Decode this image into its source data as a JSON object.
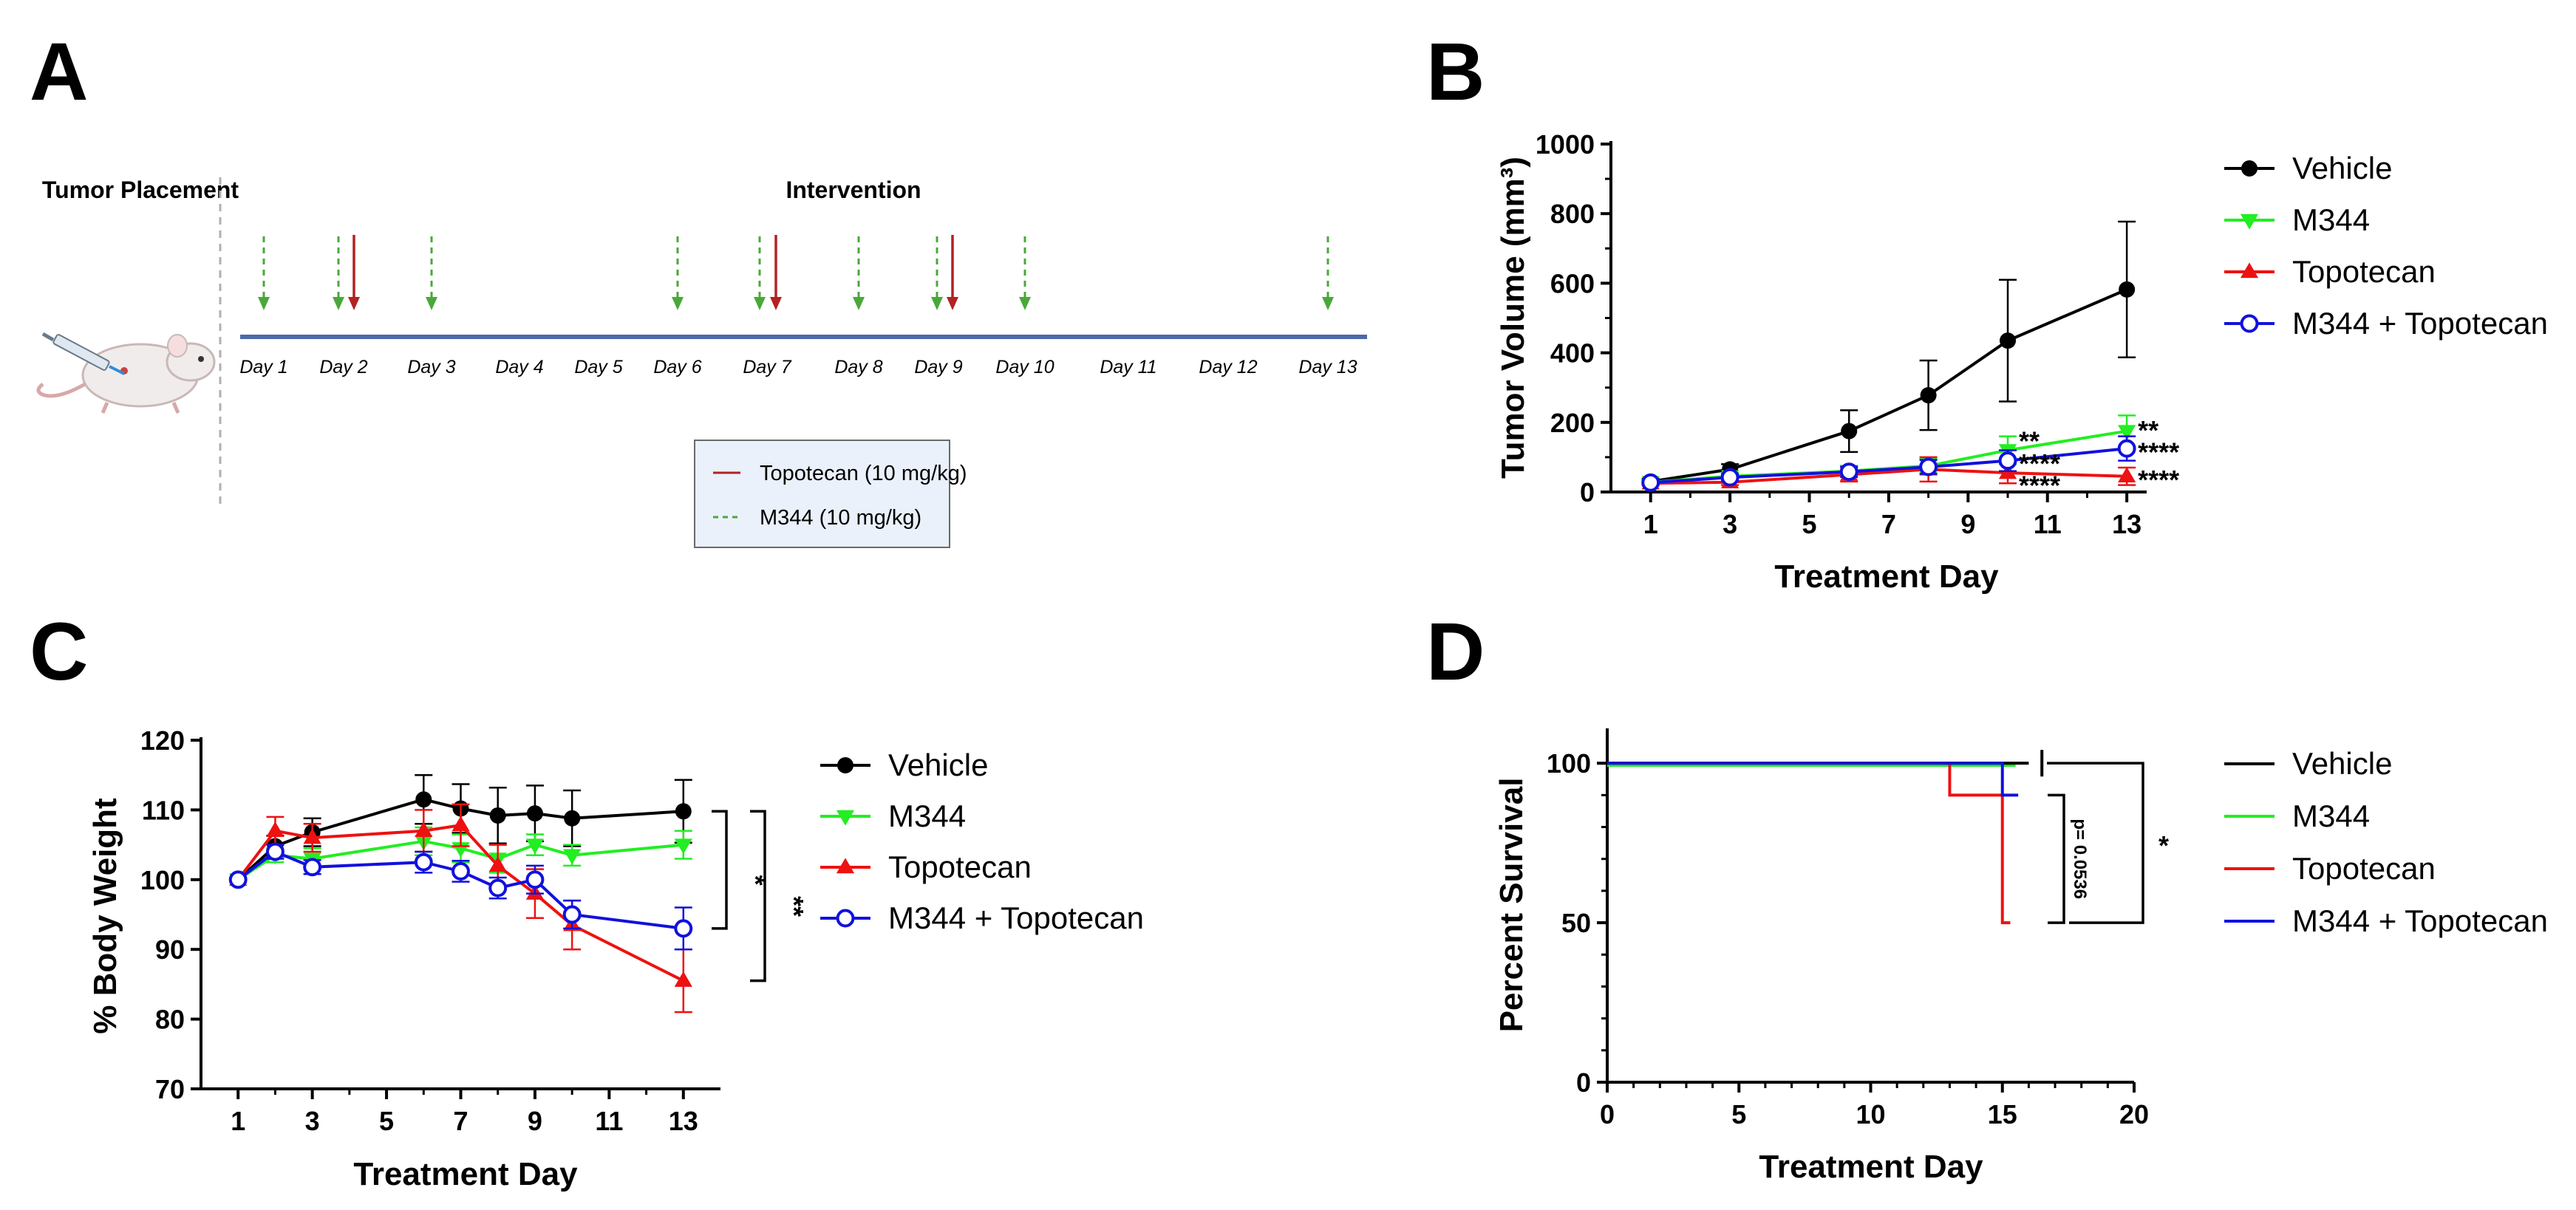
{
  "figure": {
    "panel_letters": [
      "A",
      "B",
      "C",
      "D"
    ],
    "colors": {
      "vehicle": "#000000",
      "m344": "#22ee22",
      "topotecan": "#ee1111",
      "combo": "#1111dd",
      "timeline": "#4a6aa8",
      "topotecan_arrow": "#b22222",
      "m344_arrow": "#4aa83a",
      "key_box": "#eaf1fa"
    }
  },
  "panel_a": {
    "tumor_placement": "Tumor Placement",
    "intervention": "Intervention",
    "days": [
      "Day 1",
      "Day 2",
      "Day 3",
      "Day 4",
      "Day 5",
      "Day 6",
      "Day 7",
      "Day 8",
      "Day 9",
      "Day 10",
      "Day 11",
      "Day 12",
      "Day 13"
    ],
    "m344_dose_days": [
      1,
      2,
      3,
      6,
      7,
      8,
      9,
      10,
      13
    ],
    "topotecan_dose_days": [
      2,
      7,
      9
    ],
    "key": {
      "topotecan": "Topotecan (10 mg/kg)",
      "m344": "M344 (10 mg/kg)"
    }
  },
  "chart_data": [
    {
      "panel": "B",
      "type": "line",
      "title": "",
      "xlabel": "Treatment  Day",
      "ylabel": "Tumor Volume  (mm³)",
      "xlim": [
        0,
        13.5
      ],
      "ylim": [
        0,
        1000
      ],
      "xticks": [
        1,
        3,
        5,
        7,
        9,
        11,
        13
      ],
      "yticks": [
        0,
        200,
        400,
        600,
        800,
        1000
      ],
      "legend_position": "right",
      "series": [
        {
          "name": "Vehicle",
          "marker": "circle",
          "x": [
            1,
            3,
            6,
            8,
            10,
            13
          ],
          "values": [
            30,
            65,
            175,
            278,
            435,
            582
          ],
          "err": [
            8,
            15,
            60,
            100,
            175,
            195
          ]
        },
        {
          "name": "M344",
          "marker": "triangle-down",
          "x": [
            1,
            3,
            6,
            8,
            10,
            13
          ],
          "values": [
            28,
            45,
            60,
            75,
            120,
            175
          ],
          "err": [
            6,
            10,
            15,
            20,
            40,
            45
          ]
        },
        {
          "name": "Topotecan",
          "marker": "triangle-up",
          "x": [
            1,
            3,
            6,
            8,
            10,
            13
          ],
          "values": [
            25,
            28,
            50,
            65,
            55,
            45
          ],
          "err": [
            5,
            8,
            20,
            35,
            30,
            25
          ]
        },
        {
          "name": "M344 + Topotecan",
          "marker": "open-circle",
          "x": [
            1,
            3,
            6,
            8,
            10,
            13
          ],
          "values": [
            27,
            42,
            58,
            72,
            90,
            125
          ],
          "err": [
            6,
            10,
            15,
            20,
            30,
            35
          ]
        }
      ],
      "annotations": [
        {
          "text": "**",
          "x": 10,
          "y": 150
        },
        {
          "text": "****",
          "x": 10,
          "y": 85
        },
        {
          "text": "****",
          "x": 10,
          "y": 22
        },
        {
          "text": "**",
          "x": 13,
          "y": 180
        },
        {
          "text": "****",
          "x": 13,
          "y": 118
        },
        {
          "text": "****",
          "x": 13,
          "y": 38
        }
      ]
    },
    {
      "panel": "C",
      "type": "line",
      "title": "",
      "xlabel": "Treatment Day",
      "ylabel": "% Body Weight",
      "xlim": [
        0,
        14
      ],
      "ylim": [
        70,
        120
      ],
      "xticks": [
        1,
        3,
        5,
        7,
        9,
        11,
        13
      ],
      "yticks": [
        70,
        80,
        90,
        100,
        110,
        120
      ],
      "legend_position": "right",
      "series": [
        {
          "name": "Vehicle",
          "marker": "circle",
          "x": [
            1,
            2,
            3,
            6,
            7,
            8,
            9,
            10,
            13
          ],
          "values": [
            100,
            104.8,
            106.8,
            111.5,
            110.2,
            109.2,
            109.5,
            108.8,
            109.8
          ],
          "err": [
            0,
            1.5,
            2,
            3.5,
            3.5,
            4,
            4,
            4,
            4.5
          ]
        },
        {
          "name": "M344",
          "marker": "triangle-down",
          "x": [
            1,
            2,
            3,
            6,
            7,
            8,
            9,
            10,
            13
          ],
          "values": [
            100,
            103.5,
            103,
            105.5,
            104.5,
            103,
            105,
            103.5,
            105
          ],
          "err": [
            0,
            1,
            1.5,
            2,
            2,
            2,
            1.5,
            1.5,
            2
          ]
        },
        {
          "name": "Topotecan",
          "marker": "triangle-up",
          "x": [
            1,
            2,
            3,
            6,
            7,
            8,
            9,
            10,
            13
          ],
          "values": [
            100,
            107,
            106,
            107,
            107.8,
            102,
            98,
            93.5,
            85.5
          ],
          "err": [
            0,
            2,
            2,
            3,
            3,
            3,
            3.5,
            3.5,
            4.5
          ]
        },
        {
          "name": "M344 + Topotecan",
          "marker": "open-circle",
          "x": [
            1,
            2,
            3,
            6,
            7,
            8,
            9,
            10,
            13
          ],
          "values": [
            100,
            104,
            101.8,
            102.5,
            101.2,
            98.8,
            100,
            95,
            93
          ],
          "err": [
            0,
            1,
            1,
            1.5,
            1.5,
            1.5,
            2,
            2,
            3
          ]
        }
      ],
      "brackets": [
        {
          "text": "*",
          "y_top": 109.8,
          "y_bottom": 93
        },
        {
          "text": "**",
          "y_top": 109.8,
          "y_bottom": 85.5
        }
      ]
    },
    {
      "panel": "D",
      "type": "line",
      "title": "",
      "xlabel": "Treatment Day",
      "ylabel": "Percent Survival",
      "xlim": [
        0,
        20
      ],
      "ylim": [
        0,
        110
      ],
      "xticks": [
        0,
        5,
        10,
        15,
        20
      ],
      "yticks": [
        0,
        50,
        100
      ],
      "legend_position": "right",
      "series": [
        {
          "name": "Vehicle",
          "step_x": [
            0,
            16
          ],
          "step_y": [
            100,
            100
          ],
          "censor_x": 16.5
        },
        {
          "name": "M344",
          "step_x": [
            0,
            15.5
          ],
          "step_y": [
            100,
            100
          ]
        },
        {
          "name": "Topotecan",
          "step_x": [
            0,
            13,
            13,
            15,
            15,
            15.3
          ],
          "step_y": [
            100,
            100,
            90,
            90,
            50,
            50
          ]
        },
        {
          "name": "M344 + Topotecan",
          "step_x": [
            0,
            15,
            15,
            15.6
          ],
          "step_y": [
            100,
            100,
            90,
            90
          ]
        }
      ],
      "brackets": [
        {
          "text": "p= 0.0536",
          "y_top": 90,
          "y_bottom": 50
        },
        {
          "text": "*",
          "y_top": 100,
          "y_bottom": 50
        }
      ]
    }
  ]
}
